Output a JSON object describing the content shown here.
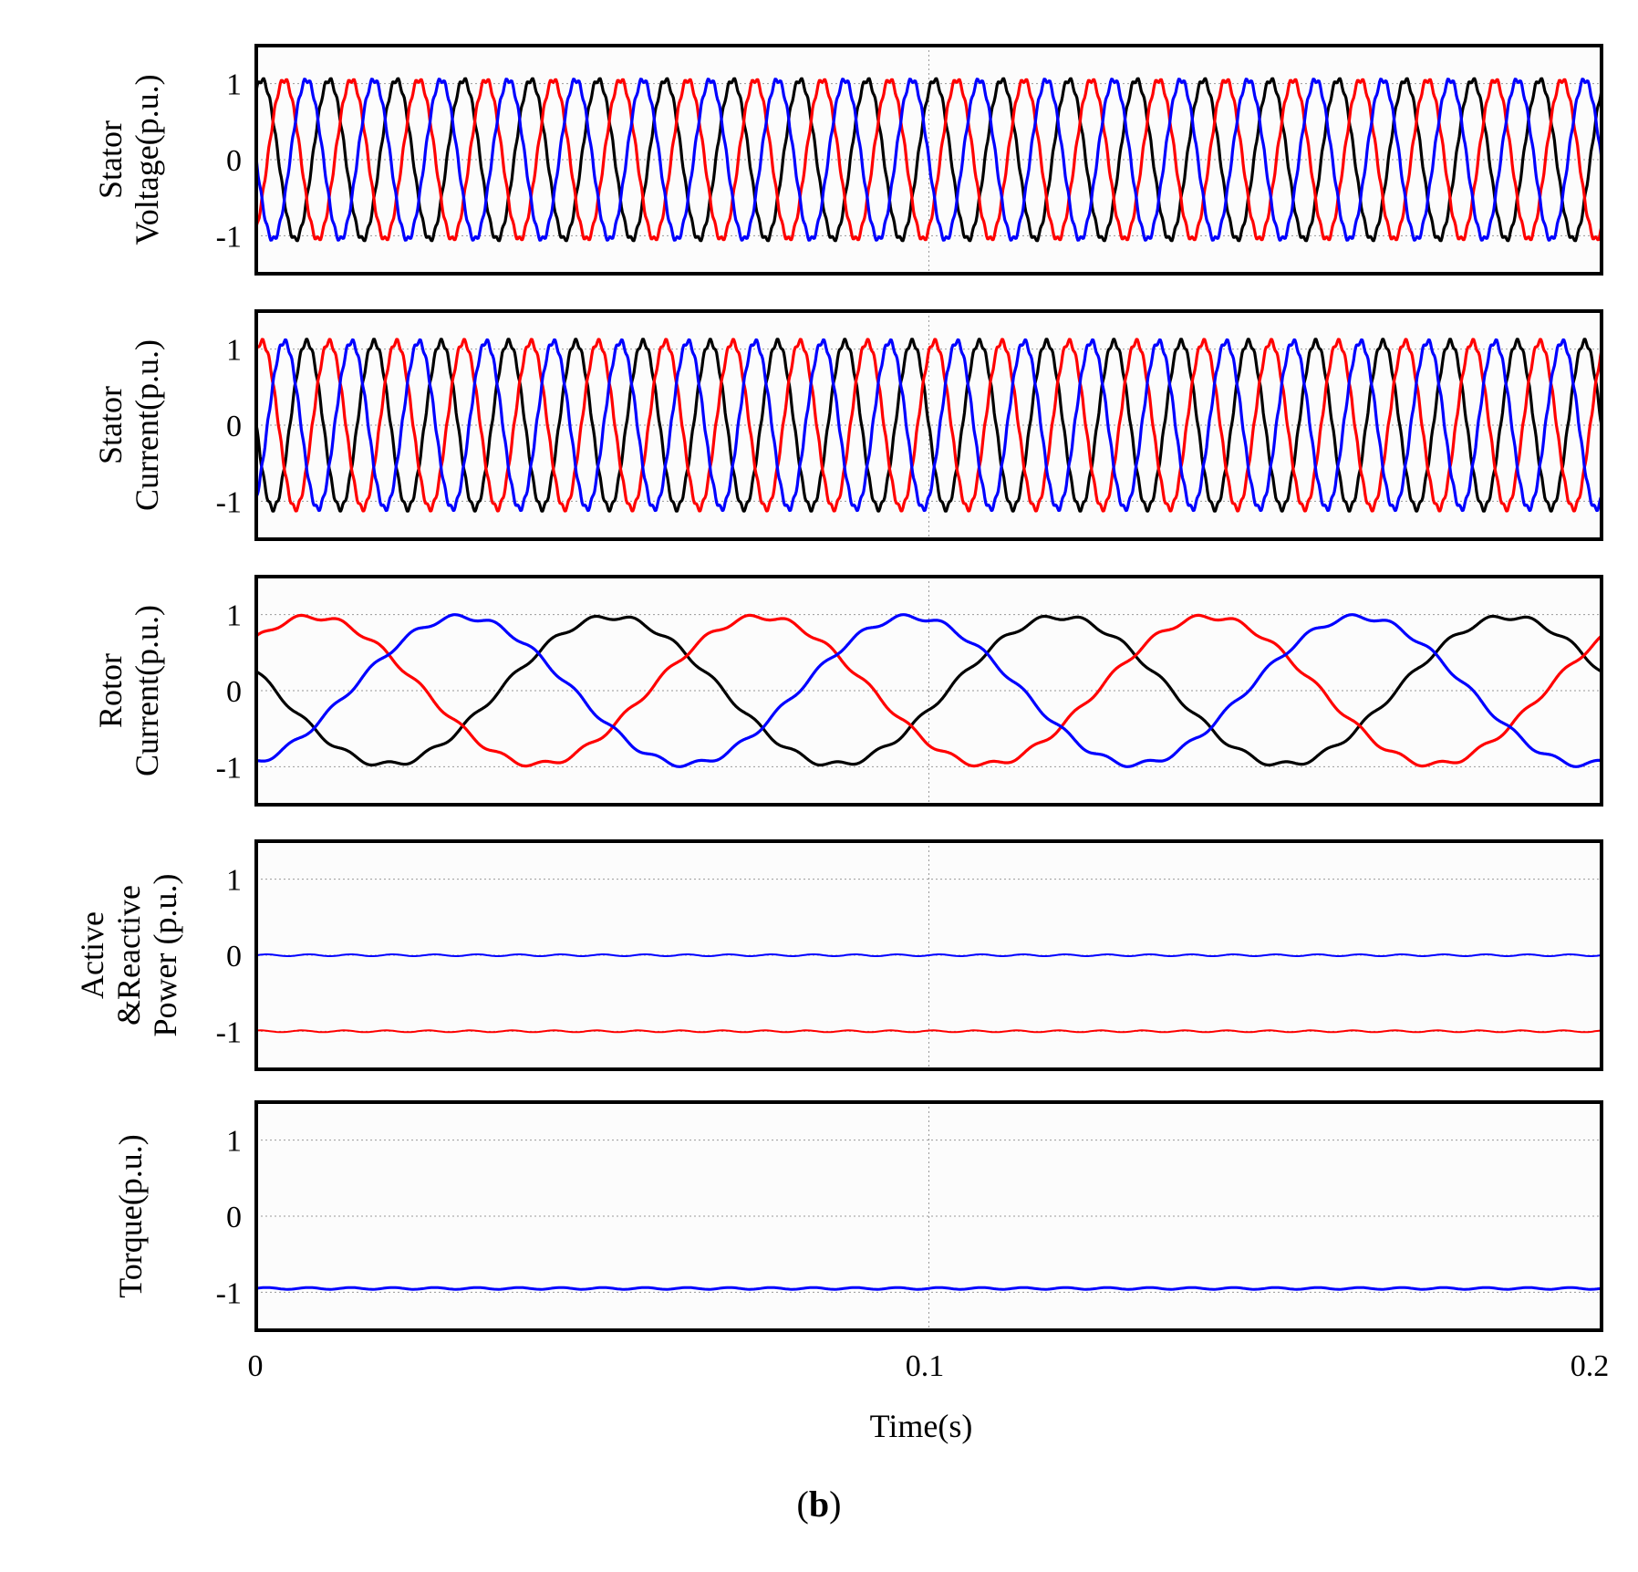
{
  "chart_data": {
    "type": "line",
    "caption_open": "(",
    "caption_label": "b",
    "caption_close": ")",
    "x_range": [
      0,
      0.2
    ],
    "x_ticks": [
      0,
      0.1,
      0.2
    ],
    "x_tick_labels": [
      "0",
      "0.1",
      "0.2"
    ],
    "xlabel": "Time(s)",
    "series_colors": {
      "black": "#000000",
      "red": "#ff0000",
      "blue": "#0000ff"
    },
    "panels": [
      {
        "id": "stator-voltage",
        "ylabel_lines": [
          "Stator",
          "Voltage(p.u.)"
        ],
        "y_range": [
          -1.5,
          1.5
        ],
        "y_ticks": [
          1,
          0,
          -1
        ],
        "y_tick_labels": [
          "1",
          "0",
          "-1"
        ],
        "waves": [
          {
            "name": "phase-a",
            "color": "#000000",
            "amp": 1.05,
            "freq_hz": 100,
            "phase_deg": 60
          },
          {
            "name": "phase-b",
            "color": "#ff0000",
            "amp": 1.05,
            "freq_hz": 100,
            "phase_deg": -60
          },
          {
            "name": "phase-c",
            "color": "#0000ff",
            "amp": 1.05,
            "freq_hz": 100,
            "phase_deg": 180
          }
        ],
        "flats": []
      },
      {
        "id": "stator-current",
        "ylabel_lines": [
          "Stator",
          "Current(p.u.)"
        ],
        "y_range": [
          -1.5,
          1.5
        ],
        "y_ticks": [
          1,
          0,
          -1
        ],
        "y_tick_labels": [
          "1",
          "0",
          "-1"
        ],
        "waves": [
          {
            "name": "phase-a",
            "color": "#000000",
            "amp": 1.1,
            "freq_hz": 100,
            "phase_deg": 180
          },
          {
            "name": "phase-b",
            "color": "#ff0000",
            "amp": 1.1,
            "freq_hz": 100,
            "phase_deg": 60
          },
          {
            "name": "phase-c",
            "color": "#0000ff",
            "amp": 1.1,
            "freq_hz": 100,
            "phase_deg": -60
          }
        ],
        "flats": []
      },
      {
        "id": "rotor-current",
        "ylabel_lines": [
          "Rotor",
          "Current(p.u.)"
        ],
        "y_range": [
          -1.5,
          1.5
        ],
        "y_ticks": [
          1,
          0,
          -1
        ],
        "y_tick_labels": [
          "1",
          "0",
          "-1"
        ],
        "waves": [
          {
            "name": "phase-a",
            "color": "#000000",
            "amp": 0.97,
            "freq_hz": 15,
            "phase_deg": 165
          },
          {
            "name": "phase-b",
            "color": "#ff0000",
            "amp": 0.97,
            "freq_hz": 15,
            "phase_deg": 45
          },
          {
            "name": "phase-c",
            "color": "#0000ff",
            "amp": 0.97,
            "freq_hz": 15,
            "phase_deg": -75
          }
        ],
        "flats": []
      },
      {
        "id": "active-reactive-power",
        "ylabel_lines": [
          "Active",
          "&Reactive",
          "Power (p.u.)"
        ],
        "y_range": [
          -1.5,
          1.5
        ],
        "y_ticks": [
          1,
          0,
          -1
        ],
        "y_tick_labels": [
          "1",
          "0",
          "-1"
        ],
        "waves": [],
        "flats": [
          {
            "name": "reactive-power",
            "color": "#0000ff",
            "value": 0.0
          },
          {
            "name": "active-power",
            "color": "#ff0000",
            "value": -1.0
          }
        ]
      },
      {
        "id": "torque",
        "ylabel_lines": [
          "Torque(p.u.)"
        ],
        "y_range": [
          -1.5,
          1.5
        ],
        "y_ticks": [
          1,
          0,
          -1
        ],
        "y_tick_labels": [
          "1",
          "0",
          "-1"
        ],
        "waves": [],
        "flats": [
          {
            "name": "torque",
            "color": "#0000ff",
            "value": -0.95
          }
        ]
      }
    ]
  }
}
